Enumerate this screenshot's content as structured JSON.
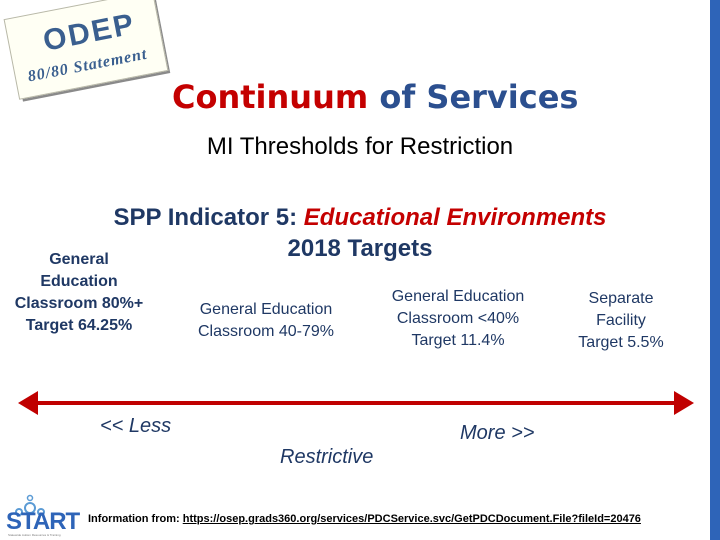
{
  "badge": {
    "title": "ODEP",
    "subtitle": "80/80 Statement"
  },
  "title": {
    "emphasis": "Continuum",
    "rest": " of Services"
  },
  "subtitle": "MI Thresholds for Restriction",
  "indicator": {
    "prefix": "SPP Indicator 5: ",
    "emphasis": "Educational Environments",
    "line2": "2018 Targets"
  },
  "categories": [
    {
      "lines": [
        "General",
        "Education",
        "Classroom 80%+",
        "Target 64.25%"
      ]
    },
    {
      "lines": [
        "General Education",
        "Classroom 40-79%"
      ]
    },
    {
      "lines": [
        "General Education",
        "Classroom <40%",
        "Target 11.4%"
      ]
    },
    {
      "lines": [
        "Separate",
        "Facility",
        "Target 5.5%"
      ]
    }
  ],
  "scale": {
    "less": "<< Less",
    "middle": "Restrictive",
    "more": "More >>"
  },
  "colors": {
    "axis": "#c00000",
    "title_red": "#c40000",
    "navy": "#1f3864",
    "blue": "#2e64b8"
  },
  "logo": {
    "name": "START",
    "tagline": "Statewide Autism Resources & Training"
  },
  "footer": {
    "label": "Information from: ",
    "url": "https://osep.grads360.org/services/PDCService.svc/GetPDCDocument.File?fileId=20476"
  }
}
